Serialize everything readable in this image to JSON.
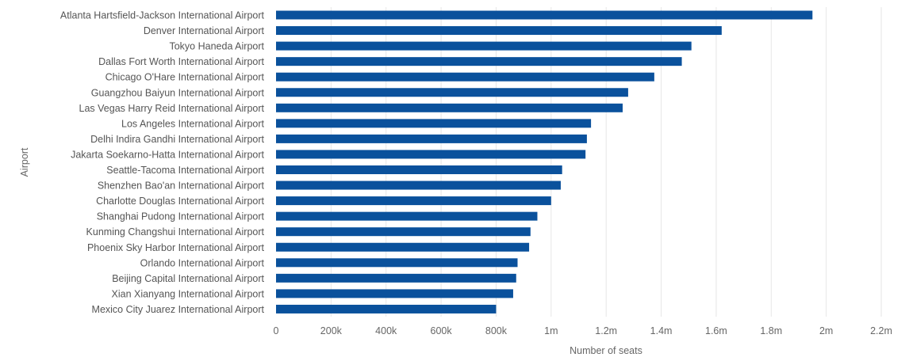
{
  "chart_data": {
    "type": "bar",
    "orientation": "horizontal",
    "title": "",
    "xlabel": "Number of seats",
    "ylabel": "Airport",
    "xlim": [
      0,
      2200000
    ],
    "xticks": [
      0,
      200000,
      400000,
      600000,
      800000,
      1000000,
      1200000,
      1400000,
      1600000,
      1800000,
      2000000,
      2200000
    ],
    "xtick_labels": [
      "0",
      "200k",
      "400k",
      "600k",
      "800k",
      "1m",
      "1.2m",
      "1.4m",
      "1.6m",
      "1.8m",
      "2m",
      "2.2m"
    ],
    "grid": true,
    "bar_color": "#0a519c",
    "categories": [
      "Atlanta Hartsfield-Jackson International Airport",
      "Denver International Airport",
      "Tokyo Haneda Airport",
      "Dallas Fort Worth International Airport",
      "Chicago O'Hare International Airport",
      "Guangzhou Baiyun International Airport",
      "Las Vegas Harry Reid International Airport",
      "Los Angeles International Airport",
      "Delhi Indira Gandhi International Airport",
      "Jakarta Soekarno-Hatta International Airport",
      "Seattle-Tacoma International Airport",
      "Shenzhen Bao'an International Airport",
      "Charlotte Douglas International Airport",
      "Shanghai Pudong International Airport",
      "Kunming Changshui International Airport",
      "Phoenix Sky Harbor International Airport",
      "Orlando International Airport",
      "Beijing Capital International Airport",
      "Xian Xianyang International Airport",
      "Mexico City Juarez International Airport"
    ],
    "values": [
      1950000,
      1620000,
      1510000,
      1475000,
      1375000,
      1280000,
      1260000,
      1145000,
      1130000,
      1125000,
      1040000,
      1035000,
      1000000,
      950000,
      925000,
      920000,
      878000,
      873000,
      862000,
      800000
    ]
  }
}
